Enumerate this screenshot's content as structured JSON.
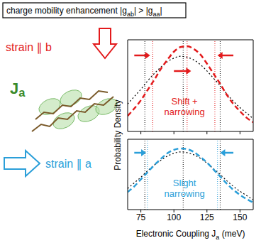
{
  "header": [
    {
      "text": "charge mobility enhancement |g"
    },
    {
      "text": "ab",
      "sub": true
    },
    {
      "text": "| > |g"
    },
    {
      "text": "aa",
      "sub": true
    },
    {
      "text": "|"
    }
  ],
  "strain_b_label": "strain ∥ b",
  "strain_a_label": "strain ∥ a",
  "molecule_label": [
    {
      "text": "J"
    },
    {
      "text": "a",
      "sub": true
    }
  ],
  "y_axis_label": "Probability Density",
  "x_axis_label": [
    {
      "text": "Electronic Coupling "
    },
    {
      "text": "J"
    },
    {
      "text": "a",
      "sub": true
    },
    {
      "text": " (meV)"
    }
  ],
  "chart_data": [
    {
      "type": "line",
      "annotation": [
        "Shift +",
        "narrowing"
      ],
      "annotation_color": "#e31a1c",
      "x": [
        65,
        70,
        75,
        80,
        85,
        90,
        95,
        100,
        105,
        110,
        115,
        120,
        125,
        130,
        135,
        140,
        145,
        150,
        155,
        160
      ],
      "series": [
        {
          "color": "#000000",
          "line_style": "dotted",
          "values": [
            0.3,
            0.38,
            0.46,
            0.55,
            0.63,
            0.7,
            0.76,
            0.8,
            0.82,
            0.81,
            0.78,
            0.73,
            0.66,
            0.58,
            0.5,
            0.41,
            0.33,
            0.26,
            0.2,
            0.14
          ]
        },
        {
          "color": "#e31a1c",
          "line_style": "dashed",
          "values": [
            0.17,
            0.25,
            0.34,
            0.45,
            0.56,
            0.68,
            0.78,
            0.87,
            0.92,
            0.93,
            0.9,
            0.84,
            0.74,
            0.63,
            0.52,
            0.4,
            0.3,
            0.22,
            0.15,
            0.1
          ]
        }
      ],
      "vlines": [
        {
          "x": 78,
          "color": "#000000"
        },
        {
          "x": 107,
          "color": "#000000"
        },
        {
          "x": 135,
          "color": "#000000"
        },
        {
          "x": 84,
          "color": "#e31a1c"
        },
        {
          "x": 110,
          "color": "#e31a1c"
        },
        {
          "x": 131,
          "color": "#e31a1c"
        }
      ],
      "xlim": [
        65,
        160
      ],
      "xticks": [
        75,
        100,
        125,
        150
      ],
      "ylim": [
        0,
        1
      ],
      "tick_labels": false
    },
    {
      "type": "line",
      "annotation": [
        "Slight",
        "narrowing"
      ],
      "annotation_color": "#2b9fd9",
      "x": [
        65,
        70,
        75,
        80,
        85,
        90,
        95,
        100,
        105,
        110,
        115,
        120,
        125,
        130,
        135,
        140,
        145,
        150,
        155,
        160
      ],
      "series": [
        {
          "color": "#000000",
          "line_style": "dotted",
          "values": [
            0.3,
            0.38,
            0.46,
            0.55,
            0.63,
            0.7,
            0.76,
            0.8,
            0.82,
            0.81,
            0.78,
            0.73,
            0.66,
            0.58,
            0.5,
            0.41,
            0.33,
            0.26,
            0.2,
            0.14
          ]
        },
        {
          "color": "#2b9fd9",
          "line_style": "dashed",
          "values": [
            0.25,
            0.33,
            0.43,
            0.53,
            0.63,
            0.72,
            0.8,
            0.85,
            0.87,
            0.86,
            0.82,
            0.75,
            0.67,
            0.57,
            0.47,
            0.37,
            0.28,
            0.21,
            0.15,
            0.1
          ]
        }
      ],
      "vlines": [
        {
          "x": 78,
          "color": "#000000"
        },
        {
          "x": 107,
          "color": "#000000"
        },
        {
          "x": 135,
          "color": "#000000"
        },
        {
          "x": 80,
          "color": "#2b9fd9"
        },
        {
          "x": 133,
          "color": "#2b9fd9"
        }
      ],
      "xlim": [
        65,
        160
      ],
      "xticks": [
        75,
        100,
        125,
        150
      ],
      "ylim": [
        0,
        1
      ],
      "tick_labels": "x"
    }
  ]
}
